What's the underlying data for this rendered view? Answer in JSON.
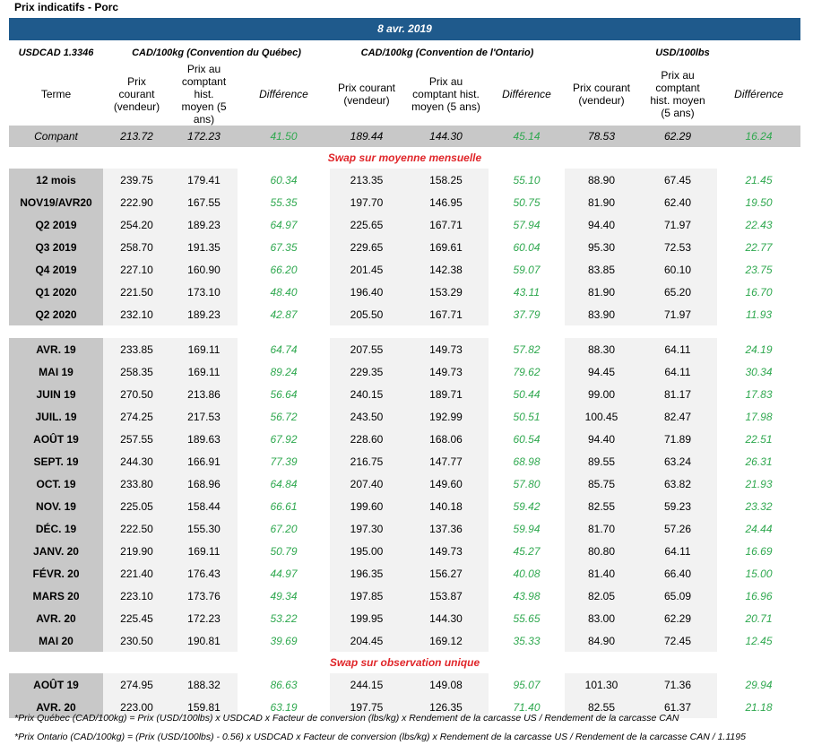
{
  "header": {
    "title": "Prix indicatifs - Porc",
    "date": "8 avr. 2019"
  },
  "table": {
    "fx": "USDCAD 1.3346",
    "groups": [
      "CAD/100kg (Convention du Québec)",
      "CAD/100kg (Convention de l'Ontario)",
      "USD/100lbs"
    ],
    "term_header": "Terme",
    "columns": [
      "Prix courant (vendeur)",
      "Prix au comptant hist. moyen (5 ans)",
      "Différence"
    ],
    "spot": [
      "Compant",
      "213.72",
      "172.23",
      "41.50",
      "189.44",
      "144.30",
      "45.14",
      "78.53",
      "62.29",
      "16.24"
    ],
    "sections": [
      {
        "title": "Swap sur moyenne mensuelle",
        "blocks": [
          [
            [
              "12 mois",
              "239.75",
              "179.41",
              "60.34",
              "213.35",
              "158.25",
              "55.10",
              "88.90",
              "67.45",
              "21.45"
            ],
            [
              "NOV19/AVR20",
              "222.90",
              "167.55",
              "55.35",
              "197.70",
              "146.95",
              "50.75",
              "81.90",
              "62.40",
              "19.50"
            ],
            [
              "Q2 2019",
              "254.20",
              "189.23",
              "64.97",
              "225.65",
              "167.71",
              "57.94",
              "94.40",
              "71.97",
              "22.43"
            ],
            [
              "Q3 2019",
              "258.70",
              "191.35",
              "67.35",
              "229.65",
              "169.61",
              "60.04",
              "95.30",
              "72.53",
              "22.77"
            ],
            [
              "Q4 2019",
              "227.10",
              "160.90",
              "66.20",
              "201.45",
              "142.38",
              "59.07",
              "83.85",
              "60.10",
              "23.75"
            ],
            [
              "Q1 2020",
              "221.50",
              "173.10",
              "48.40",
              "196.40",
              "153.29",
              "43.11",
              "81.90",
              "65.20",
              "16.70"
            ],
            [
              "Q2 2020",
              "232.10",
              "189.23",
              "42.87",
              "205.50",
              "167.71",
              "37.79",
              "83.90",
              "71.97",
              "11.93"
            ]
          ],
          [
            [
              "AVR. 19",
              "233.85",
              "169.11",
              "64.74",
              "207.55",
              "149.73",
              "57.82",
              "88.30",
              "64.11",
              "24.19"
            ],
            [
              "MAI 19",
              "258.35",
              "169.11",
              "89.24",
              "229.35",
              "149.73",
              "79.62",
              "94.45",
              "64.11",
              "30.34"
            ],
            [
              "JUIN 19",
              "270.50",
              "213.86",
              "56.64",
              "240.15",
              "189.71",
              "50.44",
              "99.00",
              "81.17",
              "17.83"
            ],
            [
              "JUIL. 19",
              "274.25",
              "217.53",
              "56.72",
              "243.50",
              "192.99",
              "50.51",
              "100.45",
              "82.47",
              "17.98"
            ],
            [
              "AOÛT 19",
              "257.55",
              "189.63",
              "67.92",
              "228.60",
              "168.06",
              "60.54",
              "94.40",
              "71.89",
              "22.51"
            ],
            [
              "SEPT. 19",
              "244.30",
              "166.91",
              "77.39",
              "216.75",
              "147.77",
              "68.98",
              "89.55",
              "63.24",
              "26.31"
            ],
            [
              "OCT. 19",
              "233.80",
              "168.96",
              "64.84",
              "207.40",
              "149.60",
              "57.80",
              "85.75",
              "63.82",
              "21.93"
            ],
            [
              "NOV. 19",
              "225.05",
              "158.44",
              "66.61",
              "199.60",
              "140.18",
              "59.42",
              "82.55",
              "59.23",
              "23.32"
            ],
            [
              "DÉC. 19",
              "222.50",
              "155.30",
              "67.20",
              "197.30",
              "137.36",
              "59.94",
              "81.70",
              "57.26",
              "24.44"
            ],
            [
              "JANV. 20",
              "219.90",
              "169.11",
              "50.79",
              "195.00",
              "149.73",
              "45.27",
              "80.80",
              "64.11",
              "16.69"
            ],
            [
              "FÉVR. 20",
              "221.40",
              "176.43",
              "44.97",
              "196.35",
              "156.27",
              "40.08",
              "81.40",
              "66.40",
              "15.00"
            ],
            [
              "MARS 20",
              "223.10",
              "173.76",
              "49.34",
              "197.85",
              "153.87",
              "43.98",
              "82.05",
              "65.09",
              "16.96"
            ],
            [
              "AVR. 20",
              "225.45",
              "172.23",
              "53.22",
              "199.95",
              "144.30",
              "55.65",
              "83.00",
              "62.29",
              "20.71"
            ],
            [
              "MAI 20",
              "230.50",
              "190.81",
              "39.69",
              "204.45",
              "169.12",
              "35.33",
              "84.90",
              "72.45",
              "12.45"
            ]
          ]
        ]
      },
      {
        "title": "Swap sur observation unique",
        "blocks": [
          [
            [
              "AOÛT 19",
              "274.95",
              "188.32",
              "86.63",
              "244.15",
              "149.08",
              "95.07",
              "101.30",
              "71.36",
              "29.94"
            ],
            [
              "AVR. 20",
              "223.00",
              "159.81",
              "63.19",
              "197.75",
              "126.35",
              "71.40",
              "82.55",
              "61.37",
              "21.18"
            ]
          ]
        ]
      }
    ]
  },
  "notes": [
    "*Prix Québec (CAD/100kg) = Prix (USD/100lbs) x USDCAD x Facteur de conversion (lbs/kg) x Rendement de la carcasse US / Rendement de la carcasse CAN",
    "*Prix Ontario (CAD/100kg) = (Prix (USD/100lbs) - 0.56) x USDCAD x Facteur de conversion (lbs/kg) x Rendement de la carcasse US / Rendement de la carcasse CAN / 1.1195"
  ]
}
